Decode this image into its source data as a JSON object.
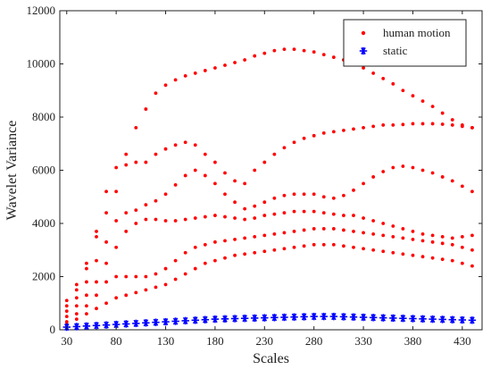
{
  "chart_data": {
    "type": "scatter",
    "title": "",
    "xlabel": "Scales",
    "ylabel": "Wavelet Variance",
    "xlim": [
      23,
      450
    ],
    "ylim": [
      0,
      12000
    ],
    "grid": false,
    "legend_position": "top-right",
    "x_ticks": [
      30,
      80,
      130,
      180,
      230,
      280,
      330,
      380,
      430
    ],
    "y_ticks": [
      0,
      2000,
      4000,
      6000,
      8000,
      10000,
      12000
    ],
    "series": [
      {
        "name": "human motion",
        "marker": "dot",
        "color": "#ff0000",
        "curves": [
          {
            "x": [
              30,
              40,
              50,
              60,
              70,
              80,
              90,
              100,
              110,
              120,
              130,
              140,
              150,
              160,
              170,
              180,
              190,
              200,
              210,
              220,
              230,
              240,
              250,
              260,
              270,
              280,
              290,
              300,
              310,
              320,
              330,
              340,
              350,
              360,
              370,
              380,
              390,
              400,
              410,
              420,
              430,
              440
            ],
            "y": [
              1100,
              1700,
              2500,
              3700,
              5200,
              6100,
              6600,
              7600,
              8300,
              8900,
              9200,
              9400,
              9550,
              9650,
              9750,
              9850,
              9950,
              10050,
              10150,
              10300,
              10400,
              10500,
              10550,
              10550,
              10500,
              10450,
              10350,
              10250,
              10150,
              10000,
              9850,
              9650,
              9450,
              9250,
              9000,
              8800,
              8600,
              8400,
              8150,
              7900,
              7700,
              7600
            ]
          },
          {
            "x": [
              30,
              40,
              50,
              60,
              70,
              80,
              90,
              100,
              110,
              120,
              130,
              140,
              150,
              160,
              170,
              180,
              190,
              200,
              210,
              220,
              230,
              240,
              250,
              260,
              270,
              280,
              290,
              300,
              310,
              320,
              330,
              340,
              350,
              360,
              370,
              380,
              390,
              400,
              410,
              420,
              430,
              440
            ],
            "y": [
              900,
              1500,
              2300,
              3500,
              4400,
              5200,
              6200,
              6300,
              6300,
              6600,
              6800,
              6950,
              7050,
              6950,
              6600,
              6300,
              5900,
              5600,
              5500,
              6000,
              6300,
              6600,
              6850,
              7050,
              7200,
              7300,
              7400,
              7450,
              7500,
              7550,
              7600,
              7650,
              7700,
              7700,
              7720,
              7750,
              7750,
              7750,
              7730,
              7700,
              7650,
              7600
            ]
          },
          {
            "x": [
              30,
              40,
              50,
              60,
              70,
              80,
              90,
              100,
              110,
              120,
              130,
              140,
              150,
              160,
              170,
              180,
              190,
              200,
              210,
              220,
              230,
              240,
              250,
              260,
              270,
              280,
              290,
              300,
              310,
              320,
              330,
              340,
              350,
              360,
              370,
              380,
              390,
              400,
              410,
              420,
              430,
              440
            ],
            "y": [
              700,
              1200,
              1800,
              2600,
              3300,
              4100,
              4400,
              4500,
              4700,
              4850,
              5100,
              5450,
              5800,
              6000,
              5800,
              5500,
              5100,
              4800,
              4550,
              4650,
              4800,
              4950,
              5050,
              5100,
              5100,
              5100,
              5000,
              4950,
              5050,
              5250,
              5500,
              5750,
              5950,
              6100,
              6150,
              6100,
              6000,
              5900,
              5750,
              5600,
              5400,
              5200
            ]
          },
          {
            "x": [
              30,
              40,
              50,
              60,
              70,
              80,
              90,
              100,
              110,
              120,
              130,
              140,
              150,
              160,
              170,
              180,
              190,
              200,
              210,
              220,
              230,
              240,
              250,
              260,
              270,
              280,
              290,
              300,
              310,
              320,
              330,
              340,
              350,
              360,
              370,
              380,
              390,
              400,
              410,
              420,
              430,
              440
            ],
            "y": [
              500,
              900,
              1300,
              1800,
              2500,
              3100,
              3700,
              4000,
              4150,
              4150,
              4100,
              4100,
              4150,
              4200,
              4250,
              4300,
              4250,
              4200,
              4150,
              4200,
              4300,
              4350,
              4400,
              4450,
              4450,
              4450,
              4400,
              4350,
              4300,
              4300,
              4200,
              4100,
              4000,
              3900,
              3800,
              3700,
              3600,
              3550,
              3500,
              3450,
              3500,
              3550
            ]
          },
          {
            "x": [
              30,
              40,
              50,
              60,
              70,
              80,
              90,
              100,
              110,
              120,
              130,
              140,
              150,
              160,
              170,
              180,
              190,
              200,
              210,
              220,
              230,
              240,
              250,
              260,
              270,
              280,
              290,
              300,
              310,
              320,
              330,
              340,
              350,
              360,
              370,
              380,
              390,
              400,
              410,
              420,
              430,
              440
            ],
            "y": [
              300,
              600,
              900,
              1300,
              1800,
              2000,
              2000,
              2000,
              2000,
              2100,
              2300,
              2600,
              2900,
              3100,
              3200,
              3300,
              3350,
              3400,
              3450,
              3500,
              3550,
              3600,
              3650,
              3700,
              3750,
              3800,
              3800,
              3800,
              3750,
              3700,
              3650,
              3600,
              3550,
              3500,
              3450,
              3400,
              3350,
              3300,
              3250,
              3200,
              3100,
              3000
            ]
          },
          {
            "x": [
              30,
              40,
              50,
              60,
              70,
              80,
              90,
              100,
              110,
              120,
              130,
              140,
              150,
              160,
              170,
              180,
              190,
              200,
              210,
              220,
              230,
              240,
              250,
              260,
              270,
              280,
              290,
              300,
              310,
              320,
              330,
              340,
              350,
              360,
              370,
              380,
              390,
              400,
              410,
              420,
              430,
              440
            ],
            "y": [
              200,
              400,
              600,
              800,
              1000,
              1200,
              1300,
              1400,
              1500,
              1600,
              1700,
              1900,
              2100,
              2300,
              2500,
              2600,
              2700,
              2800,
              2850,
              2900,
              2950,
              3000,
              3050,
              3100,
              3150,
              3200,
              3200,
              3200,
              3150,
              3100,
              3050,
              3000,
              2950,
              2900,
              2850,
              2800,
              2750,
              2700,
              2650,
              2600,
              2500,
              2400
            ]
          }
        ]
      },
      {
        "name": "static",
        "marker": "asterisk",
        "color": "#0000ff",
        "curves": [
          {
            "x": [
              30,
              40,
              50,
              60,
              70,
              80,
              90,
              100,
              110,
              120,
              130,
              140,
              150,
              160,
              170,
              180,
              190,
              200,
              210,
              220,
              230,
              240,
              250,
              260,
              270,
              280,
              290,
              300,
              310,
              320,
              330,
              340,
              350,
              360,
              370,
              380,
              390,
              400,
              410,
              420,
              430,
              440
            ],
            "y": [
              100,
              120,
              140,
              160,
              180,
              200,
              220,
              240,
              260,
              280,
              300,
              320,
              340,
              360,
              380,
              400,
              410,
              420,
              430,
              440,
              450,
              460,
              470,
              480,
              490,
              500,
              500,
              500,
              490,
              480,
              470,
              460,
              450,
              440,
              430,
              420,
              410,
              400,
              390,
              380,
              370,
              360
            ]
          }
        ]
      }
    ]
  }
}
